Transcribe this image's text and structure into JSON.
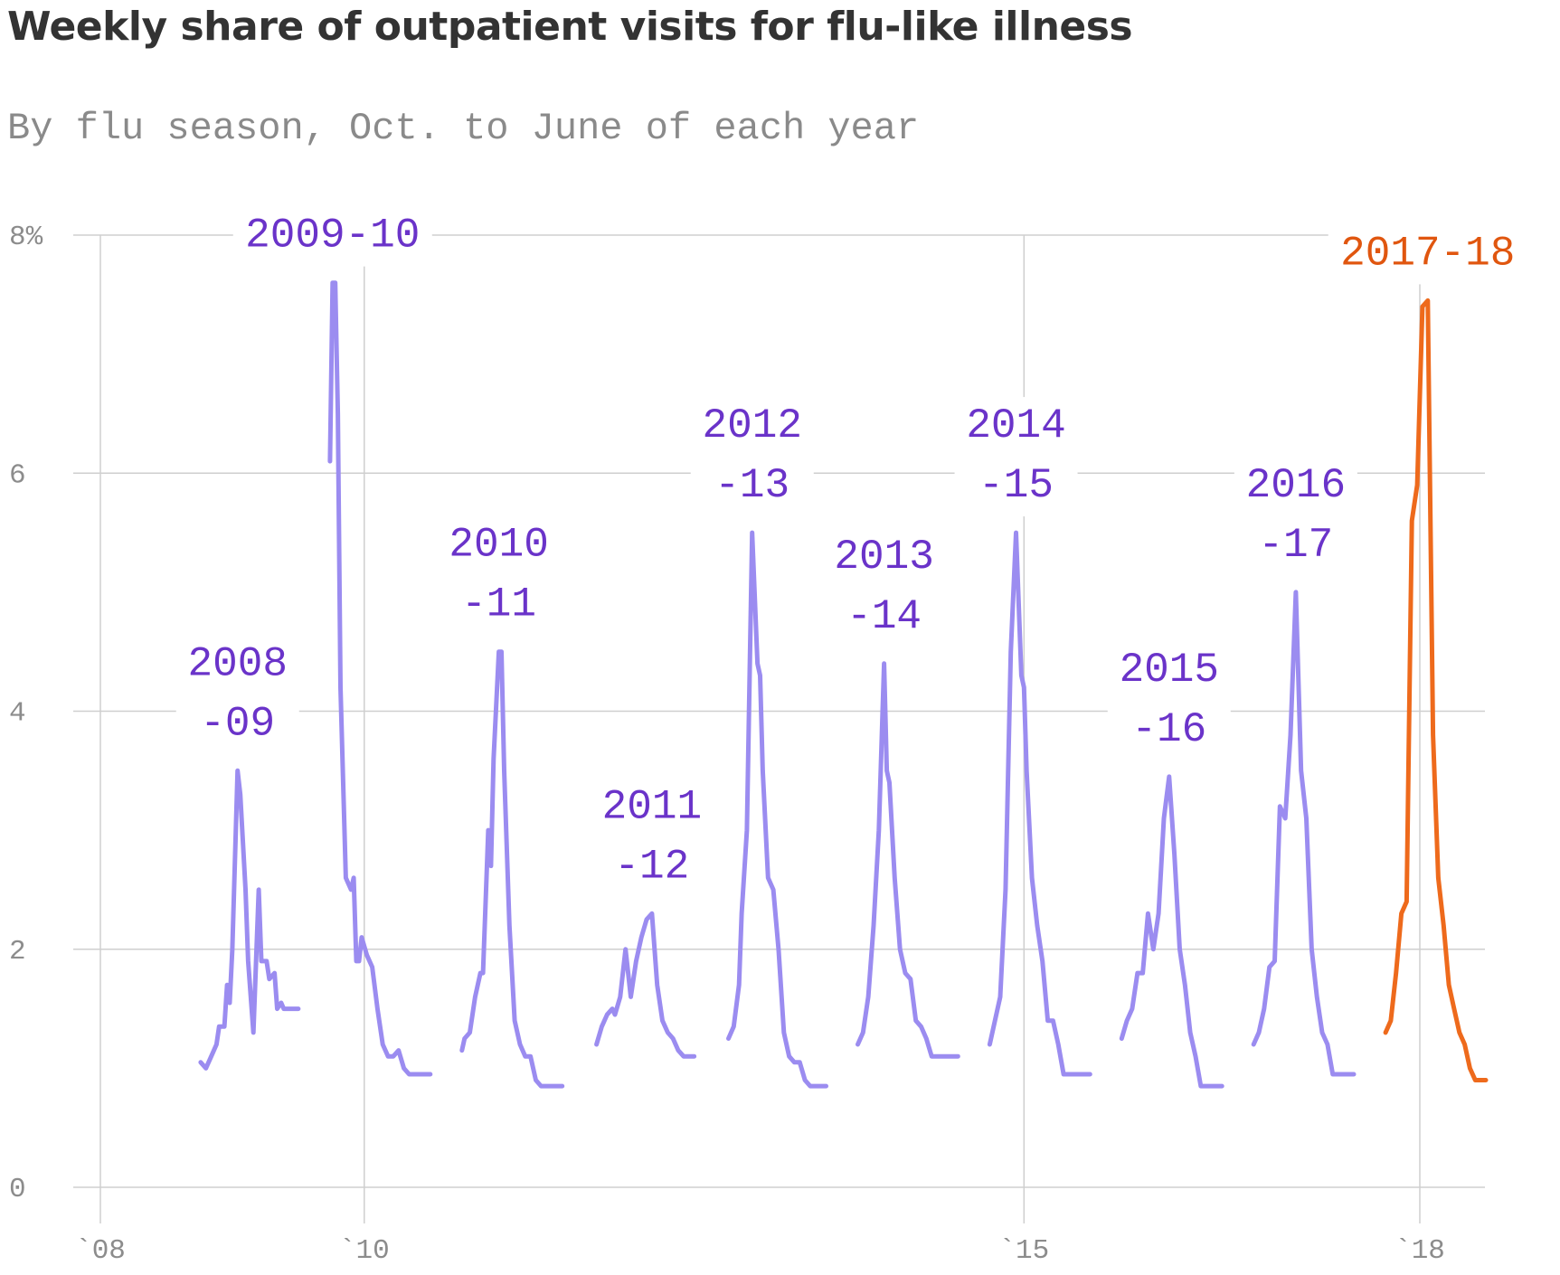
{
  "title": "Weekly share of outpatient visits for flu-like illness",
  "subtitle": "By flu season, Oct. to June of each year",
  "colors": {
    "past_seasons": "#9b8cf0",
    "highlight_season": "#ee6a1c",
    "past_label": "#6a33c9",
    "highlight_label": "#e0560f",
    "grid": "#cfcfcf",
    "axis_text": "#8c8c8c"
  },
  "chart_data": {
    "type": "line",
    "title": "Weekly share of outpatient visits for flu-like illness",
    "subtitle": "By flu season, Oct. to June of each year",
    "ylim": [
      0,
      8
    ],
    "y_ticks": [
      0,
      2,
      4,
      6,
      8
    ],
    "y_tick_labels": [
      "0",
      "2",
      "4",
      "6",
      "8%"
    ],
    "xlim": [
      2008.0,
      2018.25
    ],
    "x_ticks": [
      2008,
      2010,
      2015,
      2018
    ],
    "x_tick_labels": [
      "`08",
      "`10",
      "`15",
      "`18"
    ],
    "grid": true,
    "series": [
      {
        "name": "2008-09",
        "label_lines": [
          "2008",
          "-09"
        ],
        "highlight": false,
        "x": [
          2008.76,
          2008.8,
          2008.84,
          2008.88,
          2008.9,
          2008.94,
          2008.96,
          2008.98,
          2009.0,
          2009.04,
          2009.06,
          2009.1,
          2009.12,
          2009.14,
          2009.16,
          2009.2,
          2009.22,
          2009.26,
          2009.28,
          2009.32,
          2009.34,
          2009.37,
          2009.39,
          2009.42,
          2009.46,
          2009.5
        ],
        "y": [
          1.05,
          1.0,
          1.1,
          1.2,
          1.35,
          1.35,
          1.7,
          1.55,
          2.0,
          3.5,
          3.3,
          2.5,
          1.9,
          1.6,
          1.3,
          2.5,
          1.9,
          1.9,
          1.75,
          1.8,
          1.5,
          1.55,
          1.5,
          1.5,
          1.5,
          1.5
        ]
      },
      {
        "name": "2009-10",
        "label_lines": [
          "2009-10"
        ],
        "highlight": false,
        "x": [
          2009.74,
          2009.76,
          2009.78,
          2009.8,
          2009.82,
          2009.86,
          2009.9,
          2009.92,
          2009.94,
          2009.96,
          2009.98,
          2010.02,
          2010.06,
          2010.1,
          2010.14,
          2010.18,
          2010.22,
          2010.26,
          2010.3,
          2010.34,
          2010.38,
          2010.42,
          2010.46,
          2010.5
        ],
        "y": [
          6.1,
          7.6,
          7.6,
          6.5,
          4.2,
          2.6,
          2.5,
          2.6,
          1.9,
          1.9,
          2.1,
          1.95,
          1.85,
          1.5,
          1.2,
          1.1,
          1.1,
          1.15,
          1.0,
          0.95,
          0.95,
          0.95,
          0.95,
          0.95
        ]
      },
      {
        "name": "2010-11",
        "label_lines": [
          "2010",
          "-11"
        ],
        "highlight": false,
        "x": [
          2010.74,
          2010.76,
          2010.8,
          2010.84,
          2010.88,
          2010.9,
          2010.94,
          2010.96,
          2010.98,
          2011.02,
          2011.04,
          2011.06,
          2011.1,
          2011.14,
          2011.18,
          2011.22,
          2011.26,
          2011.3,
          2011.34,
          2011.38,
          2011.42,
          2011.46,
          2011.5
        ],
        "y": [
          1.15,
          1.25,
          1.3,
          1.6,
          1.8,
          1.8,
          3.0,
          2.7,
          3.6,
          4.5,
          4.5,
          3.5,
          2.2,
          1.4,
          1.2,
          1.1,
          1.1,
          0.9,
          0.85,
          0.85,
          0.85,
          0.85,
          0.85
        ]
      },
      {
        "name": "2011-12",
        "label_lines": [
          "2011",
          "-12"
        ],
        "highlight": false,
        "x": [
          2011.76,
          2011.8,
          2011.84,
          2011.88,
          2011.9,
          2011.94,
          2011.98,
          2012.02,
          2012.06,
          2012.1,
          2012.14,
          2012.18,
          2012.2,
          2012.22,
          2012.26,
          2012.3,
          2012.34,
          2012.38,
          2012.42,
          2012.46,
          2012.5
        ],
        "y": [
          1.2,
          1.35,
          1.45,
          1.5,
          1.45,
          1.6,
          2.0,
          1.6,
          1.9,
          2.1,
          2.25,
          2.3,
          2.0,
          1.7,
          1.4,
          1.3,
          1.25,
          1.15,
          1.1,
          1.1,
          1.1
        ]
      },
      {
        "name": "2012-13",
        "label_lines": [
          "2012",
          "-13"
        ],
        "highlight": false,
        "x": [
          2012.76,
          2012.8,
          2012.84,
          2012.86,
          2012.9,
          2012.94,
          2012.98,
          2013.0,
          2013.02,
          2013.06,
          2013.1,
          2013.14,
          2013.18,
          2013.22,
          2013.26,
          2013.3,
          2013.34,
          2013.38,
          2013.42,
          2013.46,
          2013.5
        ],
        "y": [
          1.25,
          1.35,
          1.7,
          2.3,
          3.0,
          5.5,
          4.4,
          4.3,
          3.5,
          2.6,
          2.5,
          2.0,
          1.3,
          1.1,
          1.05,
          1.05,
          0.9,
          0.85,
          0.85,
          0.85,
          0.85
        ]
      },
      {
        "name": "2013-14",
        "label_lines": [
          "2013",
          "-14"
        ],
        "highlight": false,
        "x": [
          2013.74,
          2013.78,
          2013.82,
          2013.86,
          2013.9,
          2013.94,
          2013.96,
          2013.98,
          2014.02,
          2014.06,
          2014.1,
          2014.14,
          2014.18,
          2014.22,
          2014.26,
          2014.3,
          2014.34,
          2014.38,
          2014.42,
          2014.46,
          2014.5
        ],
        "y": [
          1.2,
          1.3,
          1.6,
          2.2,
          3.0,
          4.4,
          3.5,
          3.4,
          2.6,
          2.0,
          1.8,
          1.75,
          1.4,
          1.35,
          1.25,
          1.1,
          1.1,
          1.1,
          1.1,
          1.1,
          1.1
        ]
      },
      {
        "name": "2014-15",
        "label_lines": [
          "2014",
          "-15"
        ],
        "highlight": false,
        "x": [
          2014.74,
          2014.78,
          2014.82,
          2014.86,
          2014.9,
          2014.94,
          2014.98,
          2015.0,
          2015.02,
          2015.06,
          2015.1,
          2015.14,
          2015.18,
          2015.22,
          2015.26,
          2015.3,
          2015.34,
          2015.38,
          2015.42,
          2015.46,
          2015.5
        ],
        "y": [
          1.2,
          1.4,
          1.6,
          2.5,
          4.5,
          5.5,
          4.3,
          4.2,
          3.5,
          2.6,
          2.2,
          1.9,
          1.4,
          1.4,
          1.2,
          0.95,
          0.95,
          0.95,
          0.95,
          0.95,
          0.95
        ]
      },
      {
        "name": "2015-16",
        "label_lines": [
          "2015",
          "-16"
        ],
        "highlight": false,
        "x": [
          2015.74,
          2015.78,
          2015.82,
          2015.86,
          2015.9,
          2015.94,
          2015.98,
          2016.02,
          2016.06,
          2016.1,
          2016.14,
          2016.18,
          2016.22,
          2016.26,
          2016.3,
          2016.34,
          2016.38,
          2016.42,
          2016.46,
          2016.5
        ],
        "y": [
          1.25,
          1.4,
          1.5,
          1.8,
          1.8,
          2.3,
          2.0,
          2.3,
          3.1,
          3.45,
          2.8,
          2.0,
          1.7,
          1.3,
          1.1,
          0.85,
          0.85,
          0.85,
          0.85,
          0.85
        ]
      },
      {
        "name": "2016-17",
        "label_lines": [
          "2016",
          "-17"
        ],
        "highlight": false,
        "x": [
          2016.74,
          2016.78,
          2016.82,
          2016.86,
          2016.9,
          2016.94,
          2016.98,
          2017.02,
          2017.06,
          2017.1,
          2017.14,
          2017.18,
          2017.22,
          2017.26,
          2017.3,
          2017.34,
          2017.38,
          2017.42,
          2017.46,
          2017.5
        ],
        "y": [
          1.2,
          1.3,
          1.5,
          1.85,
          1.9,
          3.2,
          3.1,
          3.8,
          5.0,
          3.5,
          3.1,
          2.0,
          1.6,
          1.3,
          1.2,
          0.95,
          0.95,
          0.95,
          0.95,
          0.95
        ]
      },
      {
        "name": "2017-18",
        "label_lines": [
          "2017-18"
        ],
        "highlight": true,
        "x": [
          2017.74,
          2017.78,
          2017.82,
          2017.86,
          2017.9,
          2017.94,
          2017.98,
          2018.02,
          2018.06,
          2018.1,
          2018.14,
          2018.18,
          2018.22,
          2018.26,
          2018.3,
          2018.34,
          2018.38,
          2018.42,
          2018.46,
          2018.5
        ],
        "y": [
          1.3,
          1.4,
          1.8,
          2.3,
          2.4,
          5.6,
          5.9,
          7.4,
          7.45,
          3.8,
          2.6,
          2.2,
          1.7,
          1.5,
          1.3,
          1.2,
          1.0,
          0.9,
          0.9,
          0.9
        ]
      }
    ]
  }
}
